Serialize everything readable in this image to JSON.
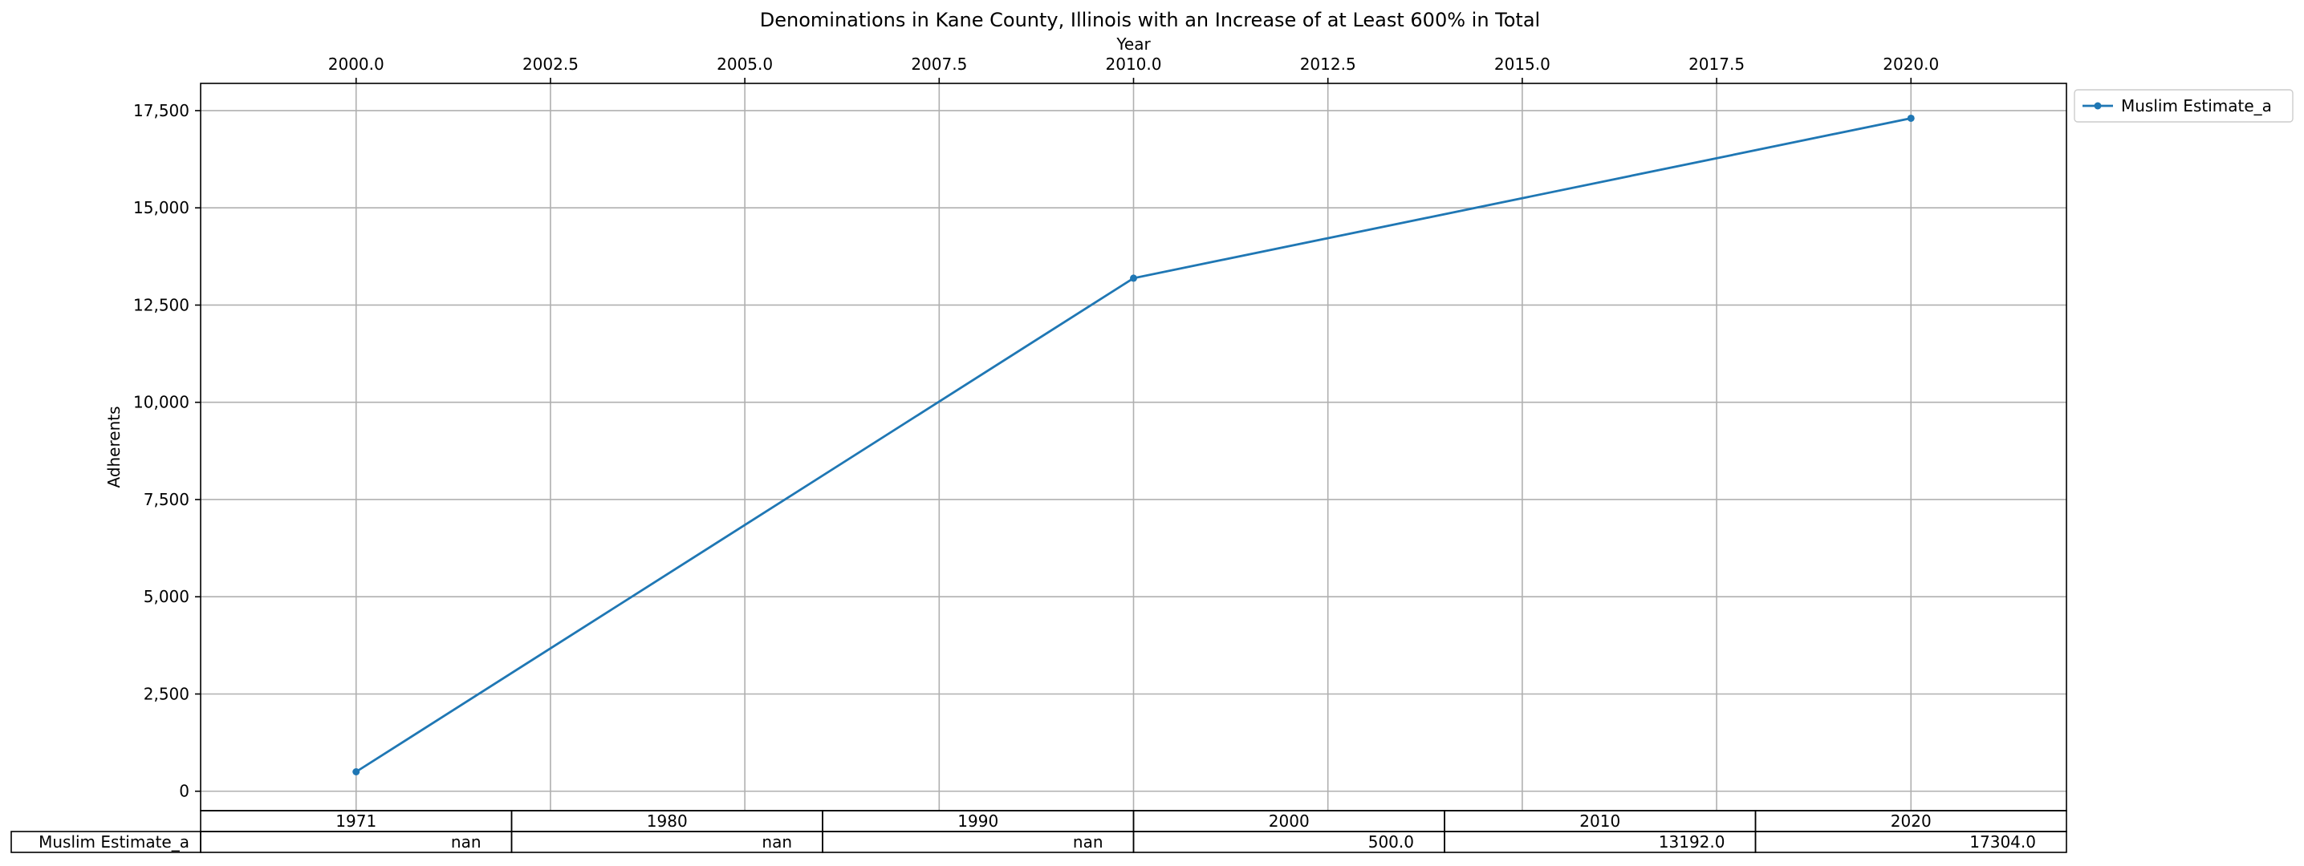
{
  "chart_data": {
    "type": "line",
    "title": "Denominations in Kane County, Illinois with an Increase of at Least 600% in Total",
    "xlabel": "Year",
    "ylabel": "Adherents",
    "xlim": [
      1998.0,
      2022.0
    ],
    "ylim": [
      -500,
      18200
    ],
    "x_axis_position": "top",
    "grid": true,
    "legend_position": "outside-right-top",
    "x_ticks": [
      2000.0,
      2002.5,
      2005.0,
      2007.5,
      2010.0,
      2012.5,
      2015.0,
      2017.5,
      2020.0
    ],
    "x_tick_labels": [
      "2000.0",
      "2002.5",
      "2005.0",
      "2007.5",
      "2010.0",
      "2012.5",
      "2015.0",
      "2017.5",
      "2020.0"
    ],
    "y_ticks": [
      0,
      2500,
      5000,
      7500,
      10000,
      12500,
      15000,
      17500
    ],
    "y_tick_labels": [
      "0",
      "2,500",
      "5,000",
      "7,500",
      "10,000",
      "12,500",
      "15,000",
      "17,500"
    ],
    "series": [
      {
        "name": "Muslim Estimate_a",
        "color": "#1f77b4",
        "marker": "dot",
        "x": [
          2000,
          2010,
          2020
        ],
        "y": [
          500,
          13192,
          17304
        ]
      }
    ],
    "table": {
      "columns": [
        "1971",
        "1980",
        "1990",
        "2000",
        "2010",
        "2020"
      ],
      "rows": [
        {
          "label": "Muslim Estimate_a",
          "values": [
            "nan",
            "nan",
            "nan",
            "500.0",
            "13192.0",
            "17304.0"
          ]
        }
      ]
    }
  }
}
